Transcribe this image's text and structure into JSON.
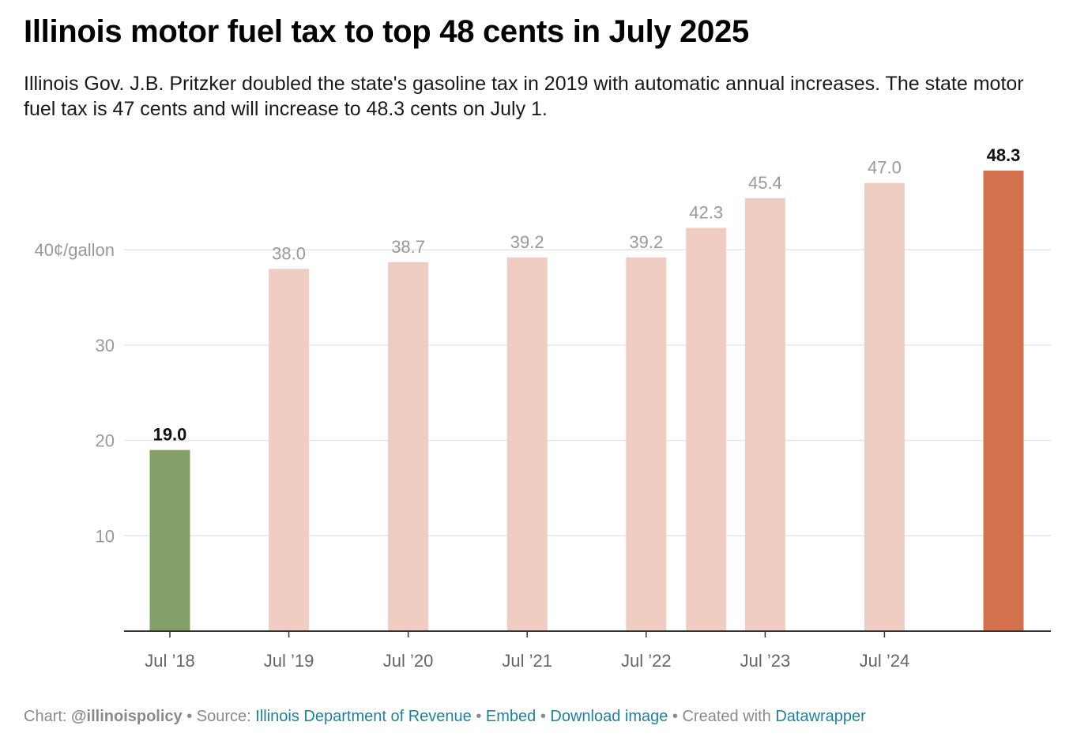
{
  "header": {
    "title": "Illinois motor fuel tax to top 48 cents in July 2025",
    "subtitle": "Illinois Gov. J.B. Pritzker doubled the state's gasoline tax in 2019 with automatic annual increases. The state motor fuel tax is 47 cents and will increase to 48.3 cents on July 1."
  },
  "chart_data": {
    "type": "bar",
    "title": "Illinois motor fuel tax to top 48 cents in July 2025",
    "ylim": [
      0,
      50
    ],
    "y_ticks": [
      {
        "value": 10,
        "label": "10"
      },
      {
        "value": 20,
        "label": "20"
      },
      {
        "value": 30,
        "label": "30"
      },
      {
        "value": 40,
        "label": "40¢/gallon"
      }
    ],
    "grid": true,
    "bars": [
      {
        "date": "2018-07-01",
        "value": 19.0,
        "label": "19.0",
        "color": "#82a067",
        "emphasis": true
      },
      {
        "date": "2019-07-01",
        "value": 38.0,
        "label": "38.0",
        "color": "#efcdc2",
        "emphasis": false
      },
      {
        "date": "2020-07-01",
        "value": 38.7,
        "label": "38.7",
        "color": "#efcdc2",
        "emphasis": false
      },
      {
        "date": "2021-07-01",
        "value": 39.2,
        "label": "39.2",
        "color": "#efcdc2",
        "emphasis": false
      },
      {
        "date": "2022-07-01",
        "value": 39.2,
        "label": "39.2",
        "color": "#efcdc2",
        "emphasis": false
      },
      {
        "date": "2023-01-01",
        "value": 42.3,
        "label": "42.3",
        "color": "#efcdc2",
        "emphasis": false
      },
      {
        "date": "2023-07-01",
        "value": 45.4,
        "label": "45.4",
        "color": "#efcdc2",
        "emphasis": false
      },
      {
        "date": "2024-07-01",
        "value": 47.0,
        "label": "47.0",
        "color": "#efcdc2",
        "emphasis": false
      },
      {
        "date": "2025-07-01",
        "value": 48.3,
        "label": "48.3",
        "color": "#d3704d",
        "emphasis": true
      }
    ],
    "x_ticks": [
      {
        "date": "2018-07-01",
        "label": "Jul ’18"
      },
      {
        "date": "2019-07-01",
        "label": "Jul ’19"
      },
      {
        "date": "2020-07-01",
        "label": "Jul ’20"
      },
      {
        "date": "2021-07-01",
        "label": "Jul ’21"
      },
      {
        "date": "2022-07-01",
        "label": "Jul ’22"
      },
      {
        "date": "2023-07-01",
        "label": "Jul ’23"
      },
      {
        "date": "2024-07-01",
        "label": "Jul ’24"
      }
    ],
    "x_domain": [
      "2018-07-01",
      "2025-07-01"
    ]
  },
  "footer": {
    "chart_prefix": "Chart: ",
    "chart_credit": "@illinoispolicy",
    "sep1": " • Source: ",
    "source_link": "Illinois Department of Revenue",
    "sep2": " • ",
    "embed_link": "Embed",
    "sep3": "  • ",
    "download_link": "Download image",
    "sep4": " • Created with ",
    "datawrapper_link": "Datawrapper"
  },
  "colors": {
    "grid": "#e6e6e6",
    "axis": "#333333",
    "muted_label": "#999999",
    "tick_label": "#666666",
    "link": "#1d81a2"
  }
}
